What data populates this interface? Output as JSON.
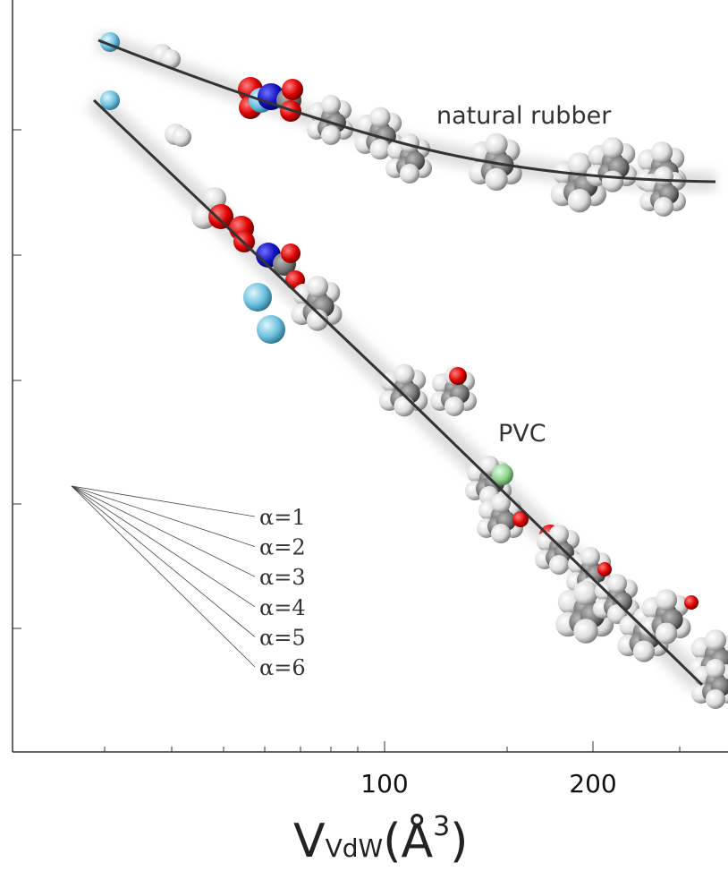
{
  "x_axis": {
    "ticks": [
      "100",
      "200"
    ],
    "label": {
      "symbol": "V",
      "subscript": "VdW",
      "unit_open": "(Å",
      "superscript": "3",
      "unit_close": ")"
    }
  },
  "annotations": [
    "natural rubber",
    "PVC"
  ],
  "alpha_labels": [
    "α=1",
    "α=2",
    "α=3",
    "α=4",
    "α=5",
    "α=6"
  ]
}
